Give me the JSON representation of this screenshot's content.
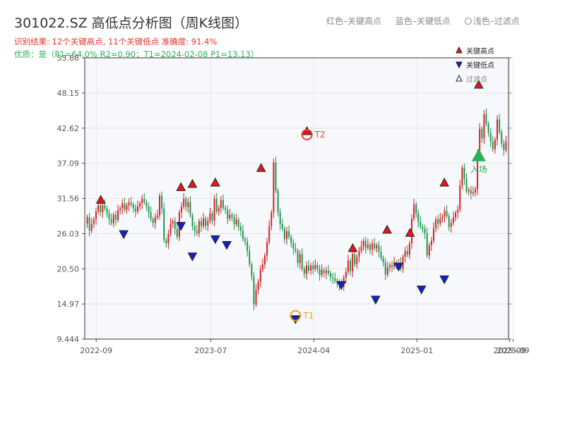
{
  "header": {
    "title": "301022.SZ 高低点分析图（周K线图）",
    "result_line": "识别结果: 12个关键高点, 11个关键低点  准确度: 91.4%",
    "quality_line": "优质：是（P1=64.0%  R2=0.90；T1=2024-02-08 P1=13.13）"
  },
  "top_legend": {
    "red_label": "红色–关键高点",
    "blue_label": "蓝色–关键低点",
    "light_label": "浅色–过滤点"
  },
  "colors": {
    "up": "#d7191c",
    "down": "#17954a",
    "high_marker": "#e8161c",
    "low_marker": "#1020d0",
    "t1": "#f0a020",
    "t2": "#e8403a",
    "entry": "#2eaf5c",
    "plot_bg": "#f6f8fb"
  },
  "chart_data": {
    "type": "candlestick",
    "title": "301022.SZ 高低点分析图（周K线图）",
    "x_start": "2022-08",
    "x_end": "2025-09",
    "ylim": [
      9.444,
      53.68
    ],
    "y_ticks": [
      "9.444",
      "14.97",
      "20.50",
      "26.03",
      "31.56",
      "37.09",
      "42.62",
      "48.15",
      "53.68"
    ],
    "x_ticks": [
      {
        "label": "2022-09",
        "month": 1
      },
      {
        "label": "2023-07",
        "month": 11
      },
      {
        "label": "2024-04",
        "month": 20
      },
      {
        "label": "2025-01",
        "month": 29
      },
      {
        "label": "2025-09",
        "month": 37.1
      },
      {
        "label": "2025-09",
        "month": 37.4
      }
    ],
    "closes": [
      28.6,
      26.5,
      27.6,
      28.3,
      29.5,
      30.5,
      29.4,
      30.5,
      30.0,
      29.2,
      28.3,
      27.7,
      29.0,
      28.2,
      29.7,
      30.0,
      30.8,
      29.8,
      30.5,
      30.9,
      30.6,
      30.0,
      29.5,
      30.3,
      30.8,
      31.5,
      31.0,
      30.3,
      29.4,
      28.3,
      27.7,
      28.6,
      28.9,
      32.0,
      30.0,
      25.0,
      24.5,
      26.0,
      27.6,
      28.0,
      26.8,
      25.5,
      29.4,
      30.3,
      31.5,
      30.2,
      31.0,
      28.9,
      27.2,
      26.5,
      26.1,
      28.0,
      27.2,
      28.4,
      27.3,
      28.0,
      29.2,
      28.1,
      31.5,
      29.5,
      30.1,
      31.3,
      30.1,
      29.8,
      28.4,
      29.0,
      28.6,
      27.5,
      28.2,
      27.1,
      26.5,
      25.2,
      24.8,
      23.3,
      21.2,
      19.3,
      14.9,
      17.2,
      18.5,
      20.4,
      21.2,
      22.6,
      24.7,
      27.2,
      29.4,
      37.2,
      32.8,
      29.4,
      27.5,
      26.8,
      25.2,
      26.4,
      25.5,
      24.5,
      23.7,
      23.3,
      21.4,
      22.8,
      20.5,
      19.7,
      21.0,
      20.2,
      21.0,
      20.5,
      21.1,
      20.5,
      19.5,
      20.3,
      19.8,
      20.2,
      19.8,
      19.2,
      19.0,
      18.6,
      18.2,
      18.0,
      17.7,
      19.1,
      20.0,
      21.8,
      20.1,
      22.8,
      21.2,
      22.4,
      23.3,
      24.0,
      24.9,
      23.8,
      24.3,
      23.5,
      24.5,
      23.7,
      24.2,
      23.2,
      22.2,
      21.5,
      19.6,
      20.7,
      21.1,
      20.8,
      21.5,
      21.2,
      21.4,
      20.5,
      22.4,
      23.3,
      22.7,
      24.5,
      28.4,
      30.6,
      29.2,
      27.9,
      27.1,
      26.8,
      26.1,
      22.6,
      24.2,
      24.9,
      26.9,
      28.3,
      27.6,
      28.4,
      28.7,
      29.6,
      28.8,
      27.1,
      27.7,
      28.6,
      29.3,
      29.8,
      33.6,
      36.4,
      34.6,
      32.7,
      32.9,
      32.3,
      32.5,
      33.0,
      38.6,
      42.5,
      41.0,
      44.8,
      43.3,
      41.9,
      40.5,
      39.3,
      40.8,
      44.0,
      42.0,
      40.2,
      39.2,
      40.5
    ],
    "key_highs": [
      {
        "label": "关键高点",
        "date": "2022-09",
        "value": 30.8
      },
      {
        "label": "关键高点",
        "date": "2023-04",
        "value": 32.8
      },
      {
        "label": "关键高点",
        "date": "2023-05",
        "value": 33.3
      },
      {
        "label": "关键高点",
        "date": "2023-07",
        "value": 33.5
      },
      {
        "label": "关键高点",
        "date": "2023-07",
        "value": 33.5
      },
      {
        "label": "关键高点",
        "date": "2023-11",
        "value": 35.8
      },
      {
        "label": "关键高点",
        "date": "2024-03",
        "value": 41.6
      },
      {
        "label": "关键高点",
        "date": "2024-07",
        "value": 23.2
      },
      {
        "label": "关键高点",
        "date": "2024-10",
        "value": 26.1
      },
      {
        "label": "关键高点",
        "date": "2024-12",
        "value": 25.6
      },
      {
        "label": "关键高点",
        "date": "2025-03",
        "value": 33.5
      },
      {
        "label": "关键高点",
        "date": "2025-06",
        "value": 48.9
      }
    ],
    "key_lows": [
      {
        "label": "关键低点",
        "date": "2022-11",
        "value": 26.5
      },
      {
        "label": "关键低点",
        "date": "2023-04",
        "value": 27.8
      },
      {
        "label": "关键低点",
        "date": "2023-05",
        "value": 23.0
      },
      {
        "label": "关键低点",
        "date": "2023-07",
        "value": 25.7
      },
      {
        "label": "关键低点",
        "date": "2023-08",
        "value": 24.8
      },
      {
        "label": "关键低点",
        "date": "2024-02",
        "value": 13.13
      },
      {
        "label": "关键低点",
        "date": "2024-06",
        "value": 18.5
      },
      {
        "label": "关键低点",
        "date": "2024-09",
        "value": 16.2
      },
      {
        "label": "关键低点",
        "date": "2024-11",
        "value": 21.4
      },
      {
        "label": "关键低点",
        "date": "2025-01",
        "value": 17.8
      },
      {
        "label": "关键低点",
        "date": "2025-03",
        "value": 19.4
      }
    ],
    "annotations": [
      {
        "label": "T1",
        "date": "2024-02",
        "value": 13.13
      },
      {
        "label": "T2",
        "date": "2024-03",
        "value": 41.6
      },
      {
        "label": "入场",
        "date": "2025-06",
        "value": 38.3
      }
    ],
    "legend": {
      "position": "top-right",
      "entries": [
        {
          "marker": "triangle-up",
          "color": "#e8161c",
          "label": "关键高点"
        },
        {
          "marker": "triangle-down",
          "color": "#1020d0",
          "label": "关键低点"
        },
        {
          "marker": "triangle-up-hollow",
          "color": "#ffffff",
          "label": "过滤点"
        }
      ]
    },
    "grid": true
  }
}
